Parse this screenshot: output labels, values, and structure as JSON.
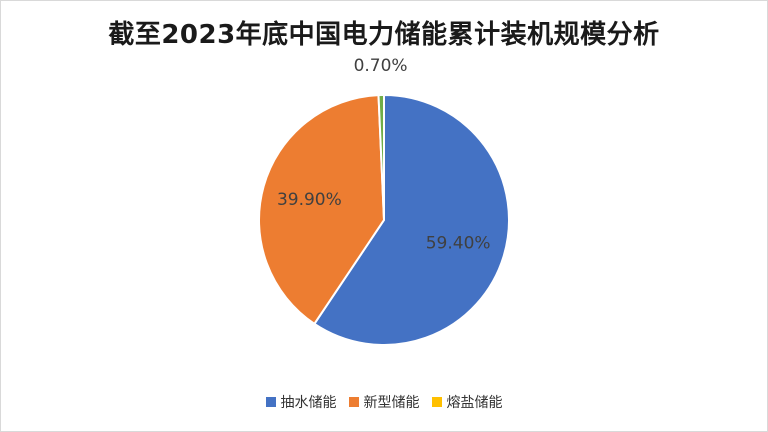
{
  "chart_data": {
    "type": "pie",
    "title": "截至2023年底中国电力储能累计装机规模分析",
    "categories": [
      "抽水储能",
      "新型储能",
      "熔盐储能"
    ],
    "values": [
      59.4,
      39.9,
      0.7
    ],
    "labels": [
      "59.40%",
      "39.90%",
      "0.70%"
    ],
    "colors": [
      "#4472C4",
      "#ED7D31",
      "#70AD47"
    ],
    "legend_colors": [
      "#4472C4",
      "#ED7D31",
      "#FFC000"
    ],
    "legend_position": "bottom"
  }
}
